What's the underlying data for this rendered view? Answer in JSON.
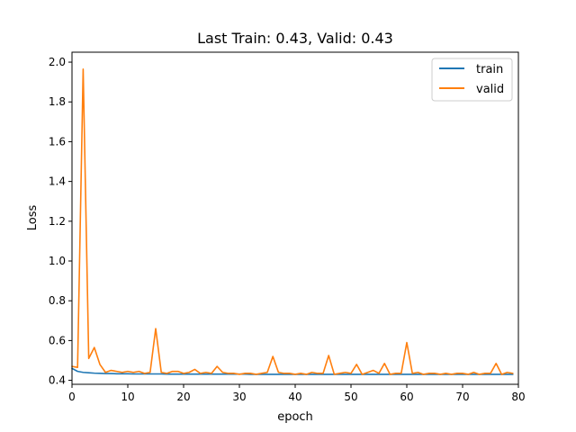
{
  "chart_data": {
    "type": "line",
    "title": "Last Train: 0.43, Valid: 0.43",
    "xlabel": "epoch",
    "ylabel": "Loss",
    "xlim": [
      0,
      80
    ],
    "ylim": [
      0.38,
      2.05
    ],
    "x_ticks": [
      0,
      10,
      20,
      30,
      40,
      50,
      60,
      70,
      80
    ],
    "y_ticks": [
      0.4,
      0.6,
      0.8,
      1.0,
      1.2,
      1.4,
      1.6,
      1.8,
      2.0
    ],
    "x_tick_labels": [
      "0",
      "10",
      "20",
      "30",
      "40",
      "50",
      "60",
      "70",
      "80"
    ],
    "y_tick_labels": [
      "0.4",
      "0.6",
      "0.8",
      "1.0",
      "1.2",
      "1.4",
      "1.6",
      "1.8",
      "2.0"
    ],
    "grid": false,
    "legend": "top-right",
    "series": [
      {
        "name": "train",
        "color": "#1f77b4",
        "x": [
          0,
          1,
          2,
          3,
          4,
          5,
          6,
          7,
          8,
          9,
          10,
          11,
          12,
          13,
          14,
          15,
          16,
          17,
          18,
          19,
          20,
          21,
          22,
          23,
          24,
          25,
          26,
          27,
          28,
          29,
          30,
          31,
          32,
          33,
          34,
          35,
          36,
          37,
          38,
          39,
          40,
          41,
          42,
          43,
          44,
          45,
          46,
          47,
          48,
          49,
          50,
          51,
          52,
          53,
          54,
          55,
          56,
          57,
          58,
          59,
          60,
          61,
          62,
          63,
          64,
          65,
          66,
          67,
          68,
          69,
          70,
          71,
          72,
          73,
          74,
          75,
          76,
          77,
          78,
          79
        ],
        "y": [
          0.46,
          0.445,
          0.44,
          0.438,
          0.436,
          0.435,
          0.434,
          0.434,
          0.433,
          0.433,
          0.433,
          0.432,
          0.432,
          0.432,
          0.432,
          0.432,
          0.432,
          0.431,
          0.431,
          0.431,
          0.431,
          0.431,
          0.431,
          0.431,
          0.431,
          0.431,
          0.431,
          0.431,
          0.431,
          0.431,
          0.431,
          0.431,
          0.43,
          0.43,
          0.43,
          0.43,
          0.43,
          0.43,
          0.43,
          0.43,
          0.43,
          0.43,
          0.43,
          0.43,
          0.43,
          0.43,
          0.43,
          0.43,
          0.43,
          0.43,
          0.43,
          0.43,
          0.43,
          0.43,
          0.43,
          0.43,
          0.43,
          0.43,
          0.43,
          0.43,
          0.43,
          0.43,
          0.43,
          0.43,
          0.43,
          0.43,
          0.43,
          0.43,
          0.43,
          0.43,
          0.43,
          0.43,
          0.43,
          0.43,
          0.43,
          0.43,
          0.43,
          0.43,
          0.43,
          0.43
        ]
      },
      {
        "name": "valid",
        "color": "#ff7f0e",
        "x": [
          0,
          1,
          2,
          3,
          4,
          5,
          6,
          7,
          8,
          9,
          10,
          11,
          12,
          13,
          14,
          15,
          16,
          17,
          18,
          19,
          20,
          21,
          22,
          23,
          24,
          25,
          26,
          27,
          28,
          29,
          30,
          31,
          32,
          33,
          34,
          35,
          36,
          37,
          38,
          39,
          40,
          41,
          42,
          43,
          44,
          45,
          46,
          47,
          48,
          49,
          50,
          51,
          52,
          53,
          54,
          55,
          56,
          57,
          58,
          59,
          60,
          61,
          62,
          63,
          64,
          65,
          66,
          67,
          68,
          69,
          70,
          71,
          72,
          73,
          74,
          75,
          76,
          77,
          78,
          79
        ],
        "y": [
          0.47,
          0.465,
          1.965,
          0.51,
          0.565,
          0.48,
          0.44,
          0.45,
          0.445,
          0.44,
          0.445,
          0.44,
          0.445,
          0.435,
          0.44,
          0.66,
          0.44,
          0.435,
          0.445,
          0.445,
          0.435,
          0.44,
          0.455,
          0.435,
          0.44,
          0.435,
          0.47,
          0.44,
          0.435,
          0.435,
          0.43,
          0.435,
          0.435,
          0.43,
          0.435,
          0.44,
          0.52,
          0.44,
          0.435,
          0.435,
          0.43,
          0.435,
          0.43,
          0.44,
          0.435,
          0.435,
          0.525,
          0.43,
          0.435,
          0.44,
          0.435,
          0.48,
          0.43,
          0.44,
          0.45,
          0.435,
          0.485,
          0.43,
          0.435,
          0.435,
          0.59,
          0.435,
          0.44,
          0.43,
          0.435,
          0.435,
          0.43,
          0.435,
          0.43,
          0.435,
          0.435,
          0.43,
          0.44,
          0.43,
          0.435,
          0.435,
          0.485,
          0.43,
          0.44,
          0.435
        ]
      }
    ]
  }
}
